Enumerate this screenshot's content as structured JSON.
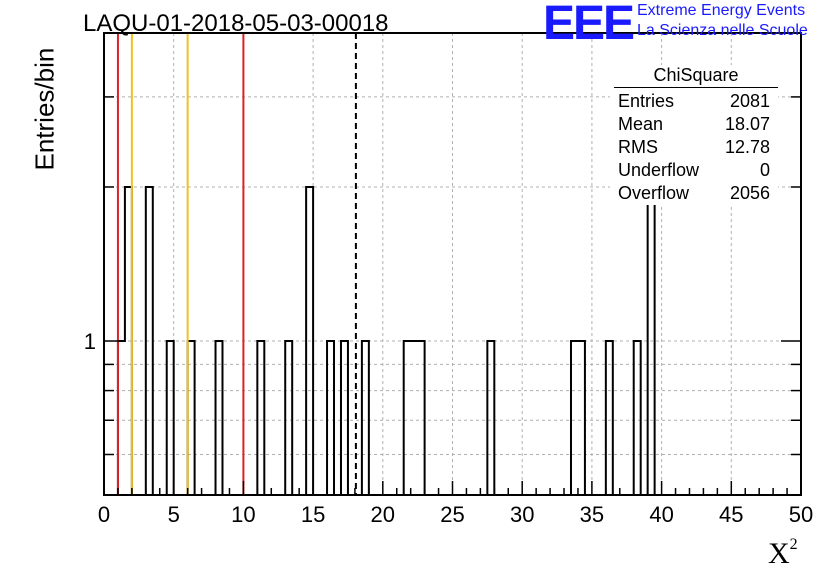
{
  "title": "LAQU-01-2018-05-03-00018",
  "logo": {
    "mark": "EEE",
    "line1": "Extreme Energy Events",
    "line2": "La Scienza nelle Scuole",
    "color": "#1a1aff"
  },
  "stats": {
    "name": "ChiSquare",
    "rows": [
      {
        "label": "Entries",
        "value": "2081"
      },
      {
        "label": "Mean",
        "value": "18.07"
      },
      {
        "label": "RMS",
        "value": "12.78"
      },
      {
        "label": "Underflow",
        "value": "0"
      },
      {
        "label": "Overflow",
        "value": "2056"
      }
    ]
  },
  "chart_data": {
    "type": "bar",
    "title": "LAQU-01-2018-05-03-00018",
    "xlabel": "X",
    "xlabel_superscript": "2",
    "ylabel": "Entries/bin",
    "xlim": [
      0,
      50
    ],
    "ylim": [
      0.5,
      4
    ],
    "yscale": "log",
    "bin_width": 0.5,
    "grid": true,
    "x_ticks": [
      "0",
      "5",
      "10",
      "15",
      "20",
      "25",
      "30",
      "35",
      "40",
      "45",
      "50"
    ],
    "y_ticks": [
      "1"
    ],
    "bins": [
      {
        "x": 1.0,
        "count": 1
      },
      {
        "x": 1.5,
        "count": 2
      },
      {
        "x": 3.0,
        "count": 2
      },
      {
        "x": 4.5,
        "count": 1
      },
      {
        "x": 6.0,
        "count": 1
      },
      {
        "x": 8.0,
        "count": 1
      },
      {
        "x": 11.0,
        "count": 1
      },
      {
        "x": 13.0,
        "count": 1
      },
      {
        "x": 14.5,
        "count": 2
      },
      {
        "x": 16.0,
        "count": 1
      },
      {
        "x": 17.0,
        "count": 1
      },
      {
        "x": 18.5,
        "count": 1
      },
      {
        "x": 21.5,
        "count": 1
      },
      {
        "x": 22.0,
        "count": 1
      },
      {
        "x": 22.5,
        "count": 1
      },
      {
        "x": 27.5,
        "count": 1
      },
      {
        "x": 33.5,
        "count": 1
      },
      {
        "x": 34.0,
        "count": 1
      },
      {
        "x": 36.0,
        "count": 1
      },
      {
        "x": 38.0,
        "count": 1
      },
      {
        "x": 39.0,
        "count": 2
      }
    ],
    "vertical_lines": [
      {
        "x": 1.0,
        "color": "#dd2222",
        "style": "solid"
      },
      {
        "x": 2.0,
        "color": "#f0c020",
        "style": "solid"
      },
      {
        "x": 6.0,
        "color": "#f0c020",
        "style": "solid"
      },
      {
        "x": 10.0,
        "color": "#dd2222",
        "style": "solid"
      },
      {
        "x": 18.07,
        "color": "#000000",
        "style": "dashed"
      }
    ]
  }
}
